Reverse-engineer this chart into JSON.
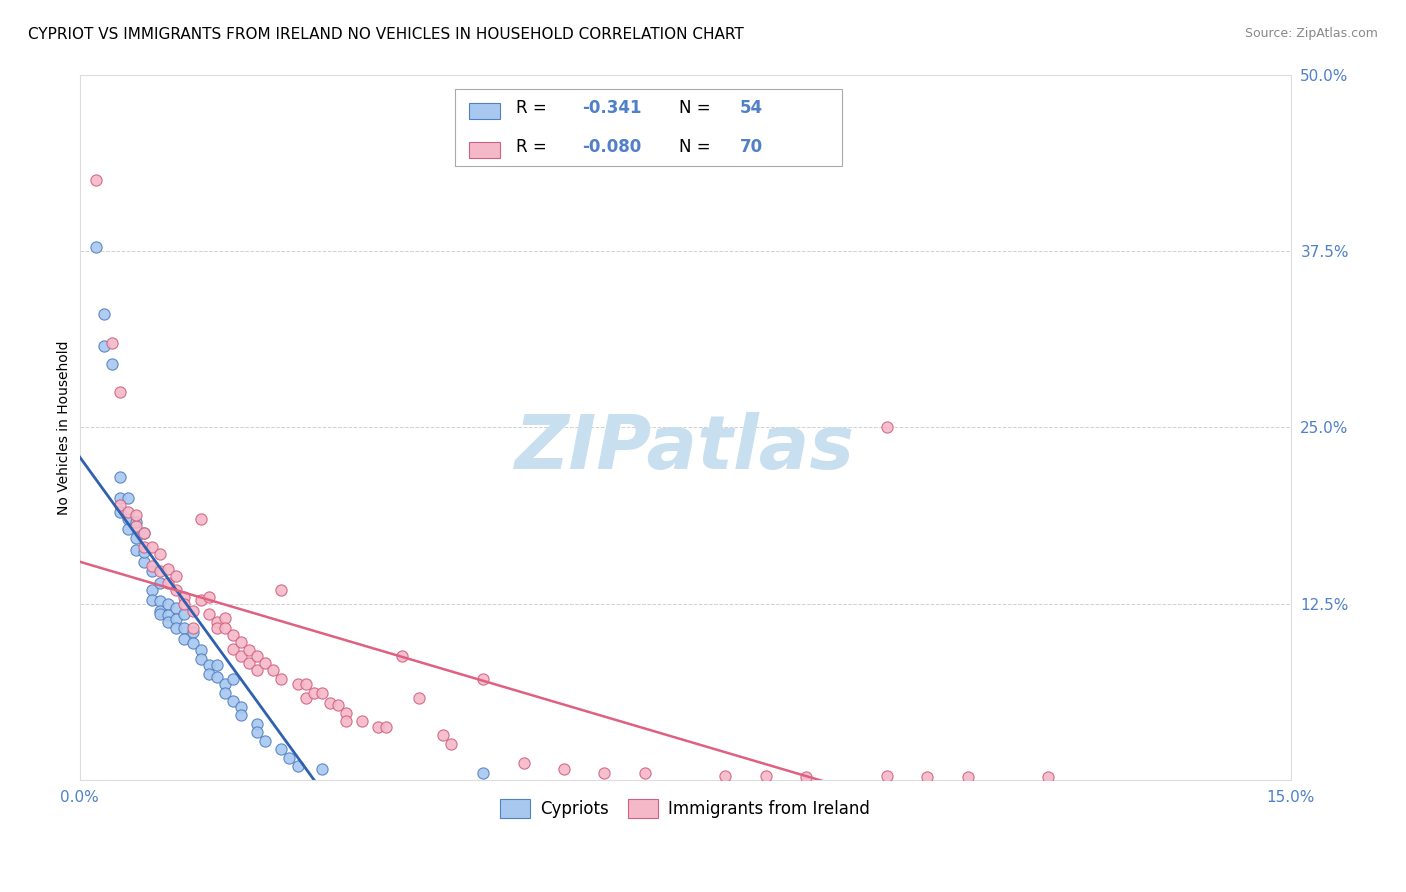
{
  "title": "CYPRIOT VS IMMIGRANTS FROM IRELAND NO VEHICLES IN HOUSEHOLD CORRELATION CHART",
  "source": "Source: ZipAtlas.com",
  "ylabel": "No Vehicles in Household",
  "xlim": [
    0.0,
    0.15
  ],
  "ylim": [
    0.0,
    0.5
  ],
  "yticks": [
    0.0,
    0.125,
    0.25,
    0.375,
    0.5
  ],
  "ytick_labels": [
    "",
    "12.5%",
    "25.0%",
    "37.5%",
    "50.0%"
  ],
  "xticks": [
    0.0,
    0.15
  ],
  "xtick_labels": [
    "0.0%",
    "15.0%"
  ],
  "legend_label_blue": "Cypriots",
  "legend_label_pink": "Immigrants from Ireland",
  "blue_face_color": "#A8C8F0",
  "blue_edge_color": "#5080C0",
  "pink_face_color": "#F5B8C8",
  "pink_edge_color": "#D06080",
  "blue_line_color": "#3060B0",
  "pink_line_color": "#E06080",
  "tick_color": "#5080C8",
  "grid_color": "#cccccc",
  "watermark": "ZIPatlas",
  "watermark_color": "#C8DFF0",
  "title_fontsize": 11,
  "axis_label_fontsize": 10,
  "tick_fontsize": 11,
  "legend_fontsize": 12,
  "source_fontsize": 9,
  "blue_scatter": [
    [
      0.002,
      0.378
    ],
    [
      0.003,
      0.33
    ],
    [
      0.003,
      0.308
    ],
    [
      0.004,
      0.295
    ],
    [
      0.005,
      0.215
    ],
    [
      0.005,
      0.2
    ],
    [
      0.005,
      0.19
    ],
    [
      0.006,
      0.185
    ],
    [
      0.006,
      0.2
    ],
    [
      0.006,
      0.178
    ],
    [
      0.007,
      0.183
    ],
    [
      0.007,
      0.172
    ],
    [
      0.007,
      0.163
    ],
    [
      0.008,
      0.175
    ],
    [
      0.008,
      0.155
    ],
    [
      0.008,
      0.162
    ],
    [
      0.009,
      0.148
    ],
    [
      0.009,
      0.135
    ],
    [
      0.009,
      0.128
    ],
    [
      0.01,
      0.14
    ],
    [
      0.01,
      0.127
    ],
    [
      0.01,
      0.12
    ],
    [
      0.01,
      0.118
    ],
    [
      0.011,
      0.125
    ],
    [
      0.011,
      0.117
    ],
    [
      0.011,
      0.112
    ],
    [
      0.012,
      0.122
    ],
    [
      0.012,
      0.114
    ],
    [
      0.012,
      0.108
    ],
    [
      0.013,
      0.118
    ],
    [
      0.013,
      0.108
    ],
    [
      0.013,
      0.1
    ],
    [
      0.014,
      0.105
    ],
    [
      0.014,
      0.097
    ],
    [
      0.015,
      0.092
    ],
    [
      0.015,
      0.086
    ],
    [
      0.016,
      0.082
    ],
    [
      0.016,
      0.075
    ],
    [
      0.017,
      0.082
    ],
    [
      0.017,
      0.073
    ],
    [
      0.018,
      0.068
    ],
    [
      0.018,
      0.062
    ],
    [
      0.019,
      0.072
    ],
    [
      0.019,
      0.056
    ],
    [
      0.02,
      0.052
    ],
    [
      0.02,
      0.046
    ],
    [
      0.022,
      0.04
    ],
    [
      0.022,
      0.034
    ],
    [
      0.023,
      0.028
    ],
    [
      0.025,
      0.022
    ],
    [
      0.026,
      0.016
    ],
    [
      0.027,
      0.01
    ],
    [
      0.03,
      0.008
    ],
    [
      0.05,
      0.005
    ]
  ],
  "pink_scatter": [
    [
      0.002,
      0.425
    ],
    [
      0.004,
      0.31
    ],
    [
      0.005,
      0.275
    ],
    [
      0.005,
      0.195
    ],
    [
      0.006,
      0.19
    ],
    [
      0.007,
      0.18
    ],
    [
      0.007,
      0.188
    ],
    [
      0.008,
      0.175
    ],
    [
      0.008,
      0.165
    ],
    [
      0.009,
      0.165
    ],
    [
      0.009,
      0.152
    ],
    [
      0.01,
      0.16
    ],
    [
      0.01,
      0.148
    ],
    [
      0.011,
      0.15
    ],
    [
      0.011,
      0.14
    ],
    [
      0.012,
      0.145
    ],
    [
      0.012,
      0.135
    ],
    [
      0.013,
      0.13
    ],
    [
      0.013,
      0.125
    ],
    [
      0.014,
      0.12
    ],
    [
      0.014,
      0.108
    ],
    [
      0.015,
      0.185
    ],
    [
      0.015,
      0.128
    ],
    [
      0.016,
      0.13
    ],
    [
      0.016,
      0.118
    ],
    [
      0.017,
      0.112
    ],
    [
      0.017,
      0.108
    ],
    [
      0.018,
      0.115
    ],
    [
      0.018,
      0.108
    ],
    [
      0.019,
      0.103
    ],
    [
      0.019,
      0.093
    ],
    [
      0.02,
      0.098
    ],
    [
      0.02,
      0.088
    ],
    [
      0.021,
      0.092
    ],
    [
      0.021,
      0.083
    ],
    [
      0.022,
      0.088
    ],
    [
      0.022,
      0.078
    ],
    [
      0.023,
      0.083
    ],
    [
      0.024,
      0.078
    ],
    [
      0.025,
      0.135
    ],
    [
      0.025,
      0.072
    ],
    [
      0.027,
      0.068
    ],
    [
      0.028,
      0.068
    ],
    [
      0.028,
      0.058
    ],
    [
      0.029,
      0.062
    ],
    [
      0.03,
      0.062
    ],
    [
      0.031,
      0.055
    ],
    [
      0.032,
      0.053
    ],
    [
      0.033,
      0.048
    ],
    [
      0.033,
      0.042
    ],
    [
      0.035,
      0.042
    ],
    [
      0.037,
      0.038
    ],
    [
      0.038,
      0.038
    ],
    [
      0.04,
      0.088
    ],
    [
      0.042,
      0.058
    ],
    [
      0.045,
      0.032
    ],
    [
      0.046,
      0.026
    ],
    [
      0.05,
      0.072
    ],
    [
      0.055,
      0.012
    ],
    [
      0.06,
      0.008
    ],
    [
      0.065,
      0.005
    ],
    [
      0.07,
      0.005
    ],
    [
      0.08,
      0.003
    ],
    [
      0.085,
      0.003
    ],
    [
      0.09,
      0.002
    ],
    [
      0.1,
      0.003
    ],
    [
      0.1,
      0.25
    ],
    [
      0.105,
      0.002
    ],
    [
      0.11,
      0.002
    ],
    [
      0.12,
      0.002
    ]
  ]
}
